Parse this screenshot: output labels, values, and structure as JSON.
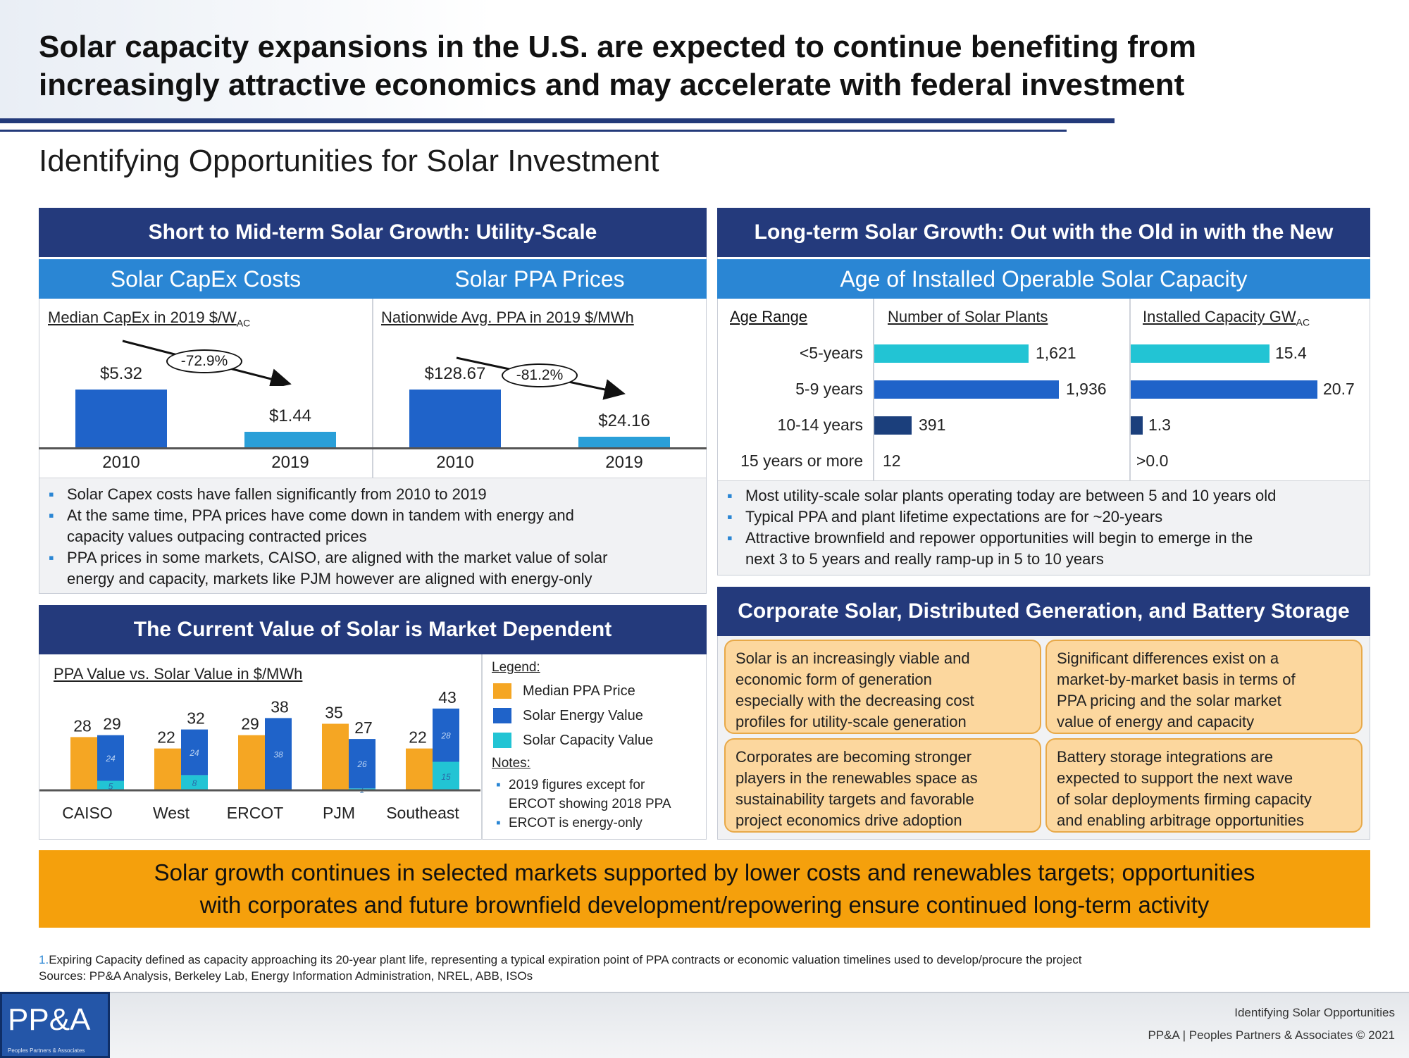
{
  "header": {
    "title_line1": "Solar capacity expansions in the U.S. are expected to continue benefiting from",
    "title_line2": "increasingly attractive economics and may accelerate with federal investment",
    "subtitle": "Identifying Opportunities for Solar Investment"
  },
  "left_top": {
    "heading": "Short to Mid-term Solar Growth: Utility-Scale",
    "capex": {
      "title": "Solar CapEx Costs",
      "label": "Median CapEx in 2019 $/W",
      "label_sub": "AC",
      "change": "-72.9%",
      "bars": [
        {
          "year": "2010",
          "label": "$5.32",
          "value": 5.32,
          "color": "#1f63c9"
        },
        {
          "year": "2019",
          "label": "$1.44",
          "value": 1.44,
          "color": "#2a9fd8"
        }
      ]
    },
    "ppa": {
      "title": "Solar PPA Prices",
      "label": "Nationwide Avg. PPA in 2019 $/MWh",
      "change": "-81.2%",
      "bars": [
        {
          "year": "2010",
          "label": "$128.67",
          "value": 128.67,
          "color": "#1f63c9"
        },
        {
          "year": "2019",
          "label": "$24.16",
          "value": 24.16,
          "color": "#2a9fd8"
        }
      ]
    },
    "bullets": [
      "Solar Capex costs have fallen significantly from 2010 to 2019",
      "At the same time, PPA prices have come down in tandem with energy and",
      "capacity values outpacing contracted prices",
      "PPA prices in some markets, CAISO, are aligned with the market value of solar",
      "energy and capacity, markets like PJM however are aligned with energy-only"
    ]
  },
  "left_bottom": {
    "heading": "The Current Value of Solar is Market Dependent",
    "chart_label": "PPA Value vs. Solar Value in $/MWh",
    "legend_title": "Legend:",
    "legend": [
      {
        "name": "Median PPA Price",
        "color": "#f5a623"
      },
      {
        "name": "Solar Energy Value",
        "color": "#1f63c9"
      },
      {
        "name": "Solar Capacity Value",
        "color": "#22c4d4"
      }
    ],
    "notes_title": "Notes:",
    "notes": [
      "2019 figures except for",
      "ERCOT showing 2018 PPA",
      "ERCOT is energy-only"
    ]
  },
  "right_top": {
    "heading": "Long-term Solar Growth: Out with the Old in with the New",
    "subheading": "Age of Installed Operable Solar Capacity",
    "col_age": "Age Range",
    "col_plants": "Number of Solar Plants",
    "col_capacity": "Installed Capacity GW",
    "col_capacity_sub": "AC",
    "rows": [
      {
        "age": "<5-years",
        "plants": 1621,
        "plants_label": "1,621",
        "capacity": 15.4,
        "capacity_label": "15.4",
        "color": "#22c4d4"
      },
      {
        "age": "5-9 years",
        "plants": 1936,
        "plants_label": "1,936",
        "capacity": 20.7,
        "capacity_label": "20.7",
        "color": "#1f63c9"
      },
      {
        "age": "10-14 years",
        "plants": 391,
        "plants_label": "391",
        "capacity": 1.3,
        "capacity_label": "1.3",
        "color": "#1b3f7c"
      },
      {
        "age": "15 years or more",
        "plants": 12,
        "plants_label": "12",
        "capacity": 0.0,
        "capacity_label": ">0.0",
        "color": "#1b3f7c"
      }
    ],
    "bullets": [
      "Most utility-scale solar plants operating today are between 5 and 10 years old",
      "Typical PPA and plant lifetime expectations are for ~20-years",
      "Attractive brownfield and repower opportunities will begin to emerge in the",
      "next 3 to 5 years and really ramp-up in 5 to 10 years"
    ]
  },
  "right_bottom": {
    "heading": "Corporate Solar, Distributed Generation, and Battery Storage",
    "tiles": [
      [
        "Solar is an increasingly viable and",
        "economic form of generation",
        "especially with the decreasing cost",
        "profiles for utility-scale generation"
      ],
      [
        "Significant differences exist on a",
        "market-by-market basis in terms of",
        "PPA pricing and the solar market",
        "value of energy and capacity"
      ],
      [
        "Corporates are becoming stronger",
        "players in the renewables space as",
        "sustainability targets and favorable",
        "project economics drive adoption"
      ],
      [
        "Battery storage integrations are",
        "expected to support the next wave",
        "of solar deployments firming capacity",
        "and enabling arbitrage opportunities"
      ]
    ]
  },
  "banner": {
    "line1": "Solar growth continues in selected markets supported by lower costs and renewables targets; opportunities",
    "line2": "with corporates and future brownfield development/repowering ensure continued long-term activity"
  },
  "footnotes": {
    "note1_num": "1.",
    "note1": "Expiring Capacity defined as capacity approaching its 20-year plant life, representing a typical expiration point of PPA contracts or economic valuation timelines used to develop/procure the project",
    "sources": "Sources: PP&A Analysis, Berkeley Lab, Energy Information Administration, NREL, ABB, ISOs"
  },
  "footer": {
    "logo": "PP&A",
    "logo_sub": "Peoples Partners & Associates",
    "right1": "Identifying Solar Opportunities",
    "right2": "PP&A | Peoples Partners & Associates © 2021"
  },
  "chart_data": {
    "type": "bar",
    "title": "PPA Value vs. Solar Value in $/MWh",
    "categories": [
      "CAISO",
      "West",
      "ERCOT",
      "PJM",
      "Southeast"
    ],
    "series": [
      {
        "name": "Median PPA Price",
        "values": [
          28,
          22,
          29,
          35,
          22
        ],
        "color": "#f5a623"
      },
      {
        "name": "Solar Energy Value",
        "values": [
          24,
          24,
          38,
          26,
          28
        ],
        "color": "#1f63c9"
      },
      {
        "name": "Solar Capacity Value",
        "values": [
          5,
          8,
          0,
          1,
          15
        ],
        "color": "#22c4d4"
      }
    ],
    "stack_totals": [
      29,
      32,
      38,
      27,
      43
    ],
    "stacked_series": [
      "Solar Energy Value",
      "Solar Capacity Value"
    ],
    "ylim": [
      0,
      45
    ]
  }
}
